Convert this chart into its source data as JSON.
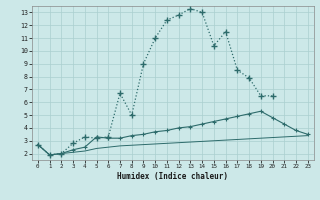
{
  "xlabel": "Humidex (Indice chaleur)",
  "bg_color": "#cce8e8",
  "grid_color": "#aacfcf",
  "line_color": "#2d6b6b",
  "xlim": [
    -0.5,
    23.5
  ],
  "ylim": [
    1.5,
    13.5
  ],
  "xticks": [
    0,
    1,
    2,
    3,
    4,
    5,
    6,
    7,
    8,
    9,
    10,
    11,
    12,
    13,
    14,
    15,
    16,
    17,
    18,
    19,
    20,
    21,
    22,
    23
  ],
  "yticks": [
    2,
    3,
    4,
    5,
    6,
    7,
    8,
    9,
    10,
    11,
    12,
    13
  ],
  "curve1_x": [
    0,
    1,
    2,
    3,
    4,
    5,
    6,
    7,
    8,
    9,
    10,
    11,
    12,
    13,
    14,
    15,
    16,
    17,
    18,
    19,
    20
  ],
  "curve1_y": [
    2.7,
    1.9,
    2.0,
    2.8,
    3.3,
    3.2,
    3.3,
    6.7,
    5.0,
    9.0,
    11.0,
    12.4,
    12.8,
    13.3,
    13.0,
    10.4,
    11.5,
    8.5,
    7.9,
    6.5,
    6.5
  ],
  "curve2_x": [
    0,
    1,
    2,
    3,
    4,
    5,
    6,
    7,
    8,
    9,
    10,
    11,
    12,
    13,
    14,
    15,
    16,
    17,
    18,
    19,
    20,
    21,
    22,
    23
  ],
  "curve2_y": [
    2.7,
    1.9,
    2.0,
    2.3,
    2.5,
    3.3,
    3.2,
    3.2,
    3.4,
    3.5,
    3.7,
    3.8,
    4.0,
    4.1,
    4.3,
    4.5,
    4.7,
    4.9,
    5.1,
    5.3,
    4.8,
    4.3,
    3.8,
    3.5
  ],
  "curve3_x": [
    0,
    1,
    2,
    3,
    4,
    5,
    6,
    7,
    8,
    9,
    10,
    11,
    12,
    13,
    14,
    15,
    16,
    17,
    18,
    19,
    20,
    21,
    22,
    23
  ],
  "curve3_y": [
    2.7,
    1.9,
    2.0,
    2.1,
    2.2,
    2.4,
    2.5,
    2.6,
    2.65,
    2.7,
    2.75,
    2.8,
    2.85,
    2.9,
    2.95,
    3.0,
    3.05,
    3.1,
    3.15,
    3.2,
    3.25,
    3.3,
    3.35,
    3.4
  ]
}
